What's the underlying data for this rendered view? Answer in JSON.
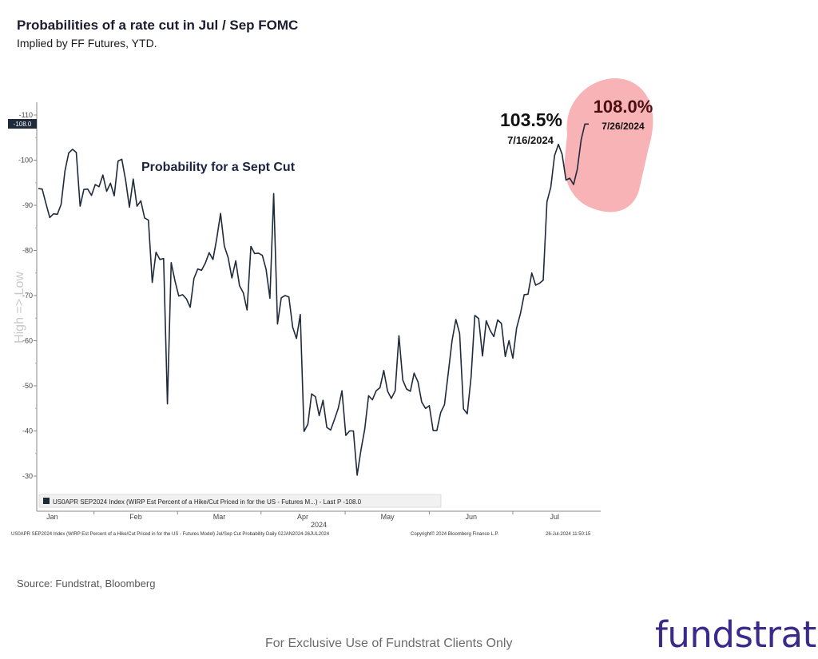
{
  "header": {
    "title": "Probabilities of a rate cut in Jul / Sep FOMC",
    "subtitle": "Implied by FF Futures, YTD."
  },
  "footer": {
    "source": "Source: Fundstrat, Bloomberg",
    "disclaimer": "For Exclusive Use of Fundstrat Clients Only",
    "brand": "fundstrat"
  },
  "colors": {
    "line": "#1f2a3a",
    "highlight": "#f7b3b5",
    "annotation_dark": "#111111",
    "annotation_red": "#4a0f12",
    "brand": "#3b2a8a"
  },
  "chart_data": {
    "type": "line",
    "title": "Probability for a Sept Cut",
    "ylabel": "High => Low",
    "xlabel": "2024",
    "ylim": [
      27,
      112
    ],
    "y_inverted": true,
    "yticks": [
      30,
      40,
      50,
      60,
      70,
      80,
      90,
      100,
      110
    ],
    "ytick_labels": [
      "-30",
      "-40",
      "-50",
      "-60",
      "-70",
      "-80",
      "-90",
      "-100",
      "-110"
    ],
    "last_value_tag": "-108.0",
    "x_months": [
      "Jan",
      "Feb",
      "Mar",
      "Apr",
      "May",
      "Jun",
      "Jul"
    ],
    "x_month_positions": [
      0.11,
      0.77,
      1.43,
      2.09,
      2.76,
      3.42,
      4.08
    ],
    "legend": "US0APR SEP2024 Index (WIRP Est Percent of a Hike/Cut Priced in for the US - Futures M...) - Last P -108.0",
    "bottom_info_left": "US0APR SEP2024 Index (WIRP Est Percent of a Hike/Cut Priced in for the US - Futures Model) Jul/Sep Cut Probability  Daily 02JAN2024-26JUL2024",
    "bottom_info_mid": "Copyright© 2024 Bloomberg Finance L.P.",
    "bottom_info_right": "26-Jul-2024 11:50:15",
    "annotations": [
      {
        "value": "103.5%",
        "date": "7/16/2024"
      },
      {
        "value": "108.0%",
        "date": "7/26/2024"
      }
    ],
    "series": [
      {
        "name": "US0APR SEP2024 Index",
        "values": [
          93.7,
          93.6,
          90.4,
          87.3,
          88.1,
          88.0,
          90.2,
          97.6,
          101.6,
          102.4,
          101.7,
          89.8,
          93.5,
          93.6,
          92.2,
          94.6,
          94.1,
          96.7,
          93.1,
          94.9,
          92.1,
          99.8,
          100.2,
          95.5,
          89.6,
          95.8,
          89.8,
          91.0,
          87.2,
          86.7,
          72.9,
          79.6,
          78.0,
          78.2,
          46.0,
          77.3,
          73.2,
          69.9,
          70.2,
          69.3,
          67.4,
          73.8,
          75.9,
          75.6,
          77.2,
          79.5,
          78.0,
          82.6,
          88.2,
          81.0,
          78.4,
          73.9,
          77.7,
          72.2,
          70.6,
          66.8,
          80.9,
          79.3,
          79.4,
          78.9,
          75.8,
          69.4,
          92.6,
          63.7,
          69.5,
          70.0,
          69.7,
          63.0,
          60.5,
          65.8,
          39.9,
          41.5,
          48.2,
          47.6,
          43.4,
          46.8,
          40.8,
          40.2,
          42.5,
          45.0,
          48.9,
          39.0,
          40.0,
          40.0,
          30.2,
          35.8,
          40.4,
          47.8,
          46.9,
          48.9,
          49.6,
          53.4,
          48.8,
          47.2,
          48.9,
          61.1,
          51.3,
          49.3,
          48.8,
          52.8,
          50.9,
          46.4,
          45.0,
          45.6,
          40.1,
          40.1,
          44.1,
          45.8,
          52.9,
          60.0,
          64.7,
          61.6,
          44.9,
          43.8,
          51.9,
          65.6,
          64.9,
          56.6,
          64.4,
          62.3,
          60.9,
          64.6,
          63.8,
          56.5,
          60.0,
          56.1,
          62.8,
          66.0,
          70.2,
          70.3,
          75.0,
          72.3,
          72.7,
          73.4,
          90.8,
          94.0,
          101.0,
          103.5,
          101.3,
          95.6,
          96.0,
          94.6,
          98.0,
          104.5,
          108.0,
          108.0
        ]
      }
    ],
    "x": [
      0.0,
      0.03,
      0.06,
      0.09,
      0.12,
      0.15,
      0.18,
      0.21,
      0.24,
      0.27,
      0.3,
      0.33,
      0.36,
      0.39,
      0.42,
      0.45,
      0.48,
      0.51,
      0.54,
      0.57,
      0.6,
      0.63,
      0.66,
      0.69,
      0.72,
      0.75,
      0.78,
      0.81,
      0.84,
      0.87,
      0.9,
      0.93,
      0.96,
      0.99,
      1.02,
      1.05,
      1.08,
      1.11,
      1.14,
      1.17,
      1.2,
      1.23,
      1.26,
      1.29,
      1.32,
      1.35,
      1.38,
      1.41,
      1.44,
      1.47,
      1.5,
      1.53,
      1.56,
      1.59,
      1.62,
      1.65,
      1.68,
      1.71,
      1.74,
      1.77,
      1.8,
      1.83,
      1.86,
      1.89,
      1.92,
      1.95,
      1.98,
      2.01,
      2.04,
      2.07,
      2.1,
      2.13,
      2.16,
      2.19,
      2.22,
      2.25,
      2.28,
      2.31,
      2.34,
      2.37,
      2.4,
      2.43,
      2.46,
      2.49,
      2.52,
      2.55,
      2.58,
      2.61,
      2.64,
      2.67,
      2.7,
      2.73,
      2.76,
      2.79,
      2.82,
      2.85,
      2.88,
      2.91,
      2.94,
      2.97,
      3.0,
      3.03,
      3.06,
      3.09,
      3.12,
      3.15,
      3.18,
      3.21,
      3.24,
      3.27,
      3.3,
      3.33,
      3.36,
      3.39,
      3.42,
      3.45,
      3.48,
      3.51,
      3.54,
      3.57,
      3.6,
      3.63,
      3.66,
      3.69,
      3.72,
      3.75,
      3.78,
      3.81,
      3.84,
      3.87,
      3.9,
      3.93,
      3.96,
      3.99,
      4.02,
      4.05,
      4.08,
      4.11,
      4.14,
      4.17,
      4.2,
      4.23,
      4.26,
      4.29,
      4.32,
      4.35
    ]
  }
}
